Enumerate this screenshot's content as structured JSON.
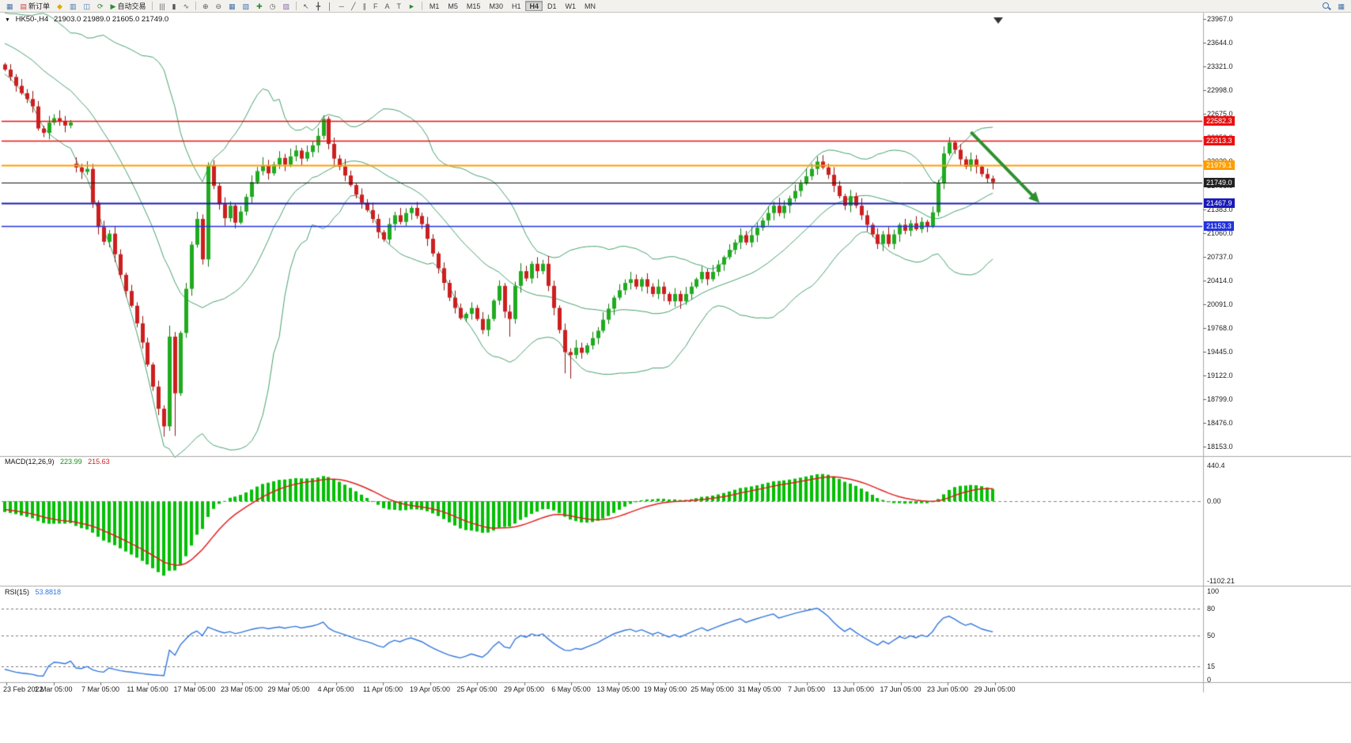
{
  "window": {
    "background": "#ffffff",
    "toolbar_background": "#f2f1ee"
  },
  "toolbar": {
    "items": [
      {
        "type": "icon",
        "name": "new-chart-icon",
        "glyph": "▦",
        "color": "#4472a8"
      },
      {
        "type": "button",
        "name": "new-order-button",
        "glyph": "▤",
        "color": "#d04040",
        "label": "新订单"
      },
      {
        "type": "icon",
        "name": "favorites-icon",
        "glyph": "◆",
        "color": "#e0a800"
      },
      {
        "type": "icon",
        "name": "market-watch-icon",
        "glyph": "▥",
        "color": "#4472a8"
      },
      {
        "type": "icon",
        "name": "data-window-icon",
        "glyph": "◫",
        "color": "#4472a8"
      },
      {
        "type": "icon",
        "name": "refresh-icon",
        "glyph": "⟳",
        "color": "#2e8b2e"
      },
      {
        "type": "button",
        "name": "auto-trading-button",
        "glyph": "▶",
        "color": "#2e8b2e",
        "label": "自动交易"
      },
      {
        "type": "sep"
      },
      {
        "type": "icon",
        "name": "bar-chart-icon",
        "glyph": "|||",
        "color": "#555555"
      },
      {
        "type": "icon",
        "name": "candle-chart-icon",
        "glyph": "▮",
        "color": "#555555"
      },
      {
        "type": "icon",
        "name": "line-chart-icon",
        "glyph": "∿",
        "color": "#555555"
      },
      {
        "type": "sep"
      },
      {
        "type": "icon",
        "name": "zoom-in-icon",
        "glyph": "⊕",
        "color": "#555555"
      },
      {
        "type": "icon",
        "name": "zoom-out-icon",
        "glyph": "⊖",
        "color": "#555555"
      },
      {
        "type": "icon",
        "name": "tile-windows-icon",
        "glyph": "▦",
        "color": "#4472a8"
      },
      {
        "type": "icon",
        "name": "cascade-windows-icon",
        "glyph": "▧",
        "color": "#4472a8"
      },
      {
        "type": "icon",
        "name": "add-indicator-icon",
        "glyph": "✚",
        "color": "#2e8b2e"
      },
      {
        "type": "icon",
        "name": "period-icon",
        "glyph": "◷",
        "color": "#555555"
      },
      {
        "type": "icon",
        "name": "template-icon",
        "glyph": "▨",
        "color": "#8a6ca8"
      },
      {
        "type": "sep"
      },
      {
        "type": "icon",
        "name": "cursor-icon",
        "glyph": "↖",
        "color": "#555555"
      },
      {
        "type": "icon",
        "name": "crosshair-icon",
        "glyph": "╋",
        "color": "#555555"
      },
      {
        "type": "icon",
        "name": "vline-icon",
        "glyph": "│",
        "color": "#555555"
      },
      {
        "type": "icon",
        "name": "hline-icon",
        "glyph": "─",
        "color": "#555555"
      },
      {
        "type": "icon",
        "name": "trendline-icon",
        "glyph": "╱",
        "color": "#555555"
      },
      {
        "type": "icon",
        "name": "channel-icon",
        "glyph": "∥",
        "color": "#555555"
      },
      {
        "type": "icon",
        "name": "fibonacci-icon",
        "glyph": "F",
        "color": "#555555"
      },
      {
        "type": "icon",
        "name": "text-icon",
        "glyph": "A",
        "color": "#555555"
      },
      {
        "type": "icon",
        "name": "label-icon",
        "glyph": "T",
        "color": "#555555"
      },
      {
        "type": "icon",
        "name": "arrows-icon",
        "glyph": "►",
        "color": "#2e8b2e"
      },
      {
        "type": "sep"
      },
      {
        "type": "tf",
        "name": "timeframe-m1",
        "label": "M1",
        "active": false
      },
      {
        "type": "tf",
        "name": "timeframe-m5",
        "label": "M5",
        "active": false
      },
      {
        "type": "tf",
        "name": "timeframe-m15",
        "label": "M15",
        "active": false
      },
      {
        "type": "tf",
        "name": "timeframe-m30",
        "label": "M30",
        "active": false
      },
      {
        "type": "tf",
        "name": "timeframe-h1",
        "label": "H1",
        "active": false
      },
      {
        "type": "tf",
        "name": "timeframe-h4",
        "label": "H4",
        "active": true
      },
      {
        "type": "tf",
        "name": "timeframe-d1",
        "label": "D1",
        "active": false
      },
      {
        "type": "tf",
        "name": "timeframe-w1",
        "label": "W1",
        "active": false
      },
      {
        "type": "tf",
        "name": "timeframe-mn",
        "label": "MN",
        "active": false
      }
    ],
    "right_items": [
      {
        "type": "mag",
        "name": "search-icon"
      },
      {
        "type": "icon",
        "name": "chart-window-icon",
        "glyph": "▦",
        "color": "#4472a8"
      }
    ]
  },
  "chart_data": {
    "type": "candlestick",
    "main": {
      "symbol_marker": "▼",
      "symbol": "HK50-,H4",
      "ohlc": "21903.0 21989.0 21605.0 21749.0",
      "price_axis": {
        "min": 18080,
        "max": 23990,
        "ticks": [
          "23967.0",
          "23644.0",
          "23321.0",
          "22998.0",
          "22675.0",
          "22352.0",
          "22029.0",
          "21706.0",
          "21383.0",
          "21060.0",
          "20737.0",
          "20414.0",
          "20091.0",
          "19768.0",
          "19445.0",
          "19122.0",
          "18799.0",
          "18476.0",
          "18153.0"
        ]
      },
      "hlines": [
        {
          "price": 22582.3,
          "label": "22582.3",
          "color": "#e81010",
          "width": 1.4
        },
        {
          "price": 22313.3,
          "label": "22313.3",
          "color": "#e81010",
          "width": 1.4
        },
        {
          "price": 21979.1,
          "label": "21979.1",
          "color": "#ff9d00",
          "width": 2
        },
        {
          "price": 21749.0,
          "label": "21749.0",
          "color": "#111111",
          "width": 1,
          "badge": "#222222"
        },
        {
          "price": 21467.9,
          "label": "21467.9",
          "color": "#1a1ab8",
          "width": 2
        },
        {
          "price": 21153.3,
          "label": "21153.3",
          "color": "#2233dd",
          "width": 1.4
        }
      ],
      "bollinger": {
        "period": 20,
        "deviation": 2,
        "color": "#46a06e"
      },
      "candles": {
        "first_open": 23350,
        "up_color": "#1fab1f",
        "up_dark": "#0c7a0c",
        "down_color": "#cc1f1f",
        "down_dark": "#8f1212",
        "pre_closes": [
          23950,
          23900,
          23870,
          23930,
          23860,
          23820,
          23850,
          23780,
          23740,
          23700,
          23720,
          23650,
          23600,
          23560,
          23520,
          23470,
          23430,
          23380,
          23340,
          23310
        ],
        "closes": [
          23280,
          23180,
          23060,
          22960,
          22880,
          22780,
          22480,
          22420,
          22560,
          22620,
          22580,
          22520,
          22560,
          21950,
          21890,
          21930,
          21470,
          21140,
          20940,
          21050,
          20770,
          20490,
          20270,
          20070,
          19830,
          19570,
          19270,
          18970,
          18670,
          18430,
          19650,
          18880,
          19700,
          20300,
          20900,
          21250,
          20700,
          21970,
          21700,
          21450,
          21260,
          21430,
          21200,
          21350,
          21550,
          21750,
          21900,
          21980,
          21870,
          21990,
          22080,
          21990,
          22100,
          22180,
          22070,
          22160,
          22250,
          22380,
          22610,
          22270,
          22070,
          21960,
          21840,
          21710,
          21580,
          21470,
          21370,
          21250,
          21070,
          20970,
          21180,
          21300,
          21210,
          21330,
          21400,
          21290,
          21180,
          20980,
          20780,
          20580,
          20380,
          20180,
          20040,
          19900,
          19960,
          20040,
          19890,
          19740,
          19890,
          20140,
          20340,
          19990,
          19890,
          20340,
          20540,
          20440,
          20640,
          20540,
          20640,
          20340,
          20040,
          19740,
          19440,
          19400,
          19500,
          19430,
          19530,
          19630,
          19730,
          19880,
          20030,
          20180,
          20280,
          20380,
          20430,
          20330,
          20430,
          20330,
          20230,
          20330,
          20230,
          20130,
          20230,
          20130,
          20230,
          20330,
          20430,
          20530,
          20430,
          20530,
          20630,
          20730,
          20830,
          20930,
          21030,
          20930,
          21030,
          21130,
          21230,
          21330,
          21430,
          21330,
          21430,
          21530,
          21630,
          21730,
          21830,
          21930,
          22030,
          21950,
          21850,
          21700,
          21560,
          21430,
          21560,
          21430,
          21300,
          21170,
          21040,
          20910,
          21040,
          20910,
          21040,
          21170,
          21090,
          21190,
          21110,
          21210,
          21150,
          21340,
          21740,
          22140,
          22290,
          22190,
          22060,
          21960,
          22060,
          21960,
          21860,
          21800,
          21749
        ],
        "open_overrides": {
          "13": 22000
        },
        "high_overrides": {
          "30": 19800,
          "37": 22020,
          "58": 22660,
          "148": 22100,
          "172": 22360
        },
        "low_overrides": {
          "29": 18290,
          "31": 18300,
          "92": 19650,
          "102": 19150,
          "103": 19080
        }
      },
      "arrow": {
        "from_bar": 176,
        "from_price": 22430,
        "to_bar": 188.5,
        "to_price": 21470,
        "color": "#2f8f2f"
      }
    },
    "macd": {
      "name": "MACD(12,26,9)",
      "value_main": "223.99",
      "value_signal": "215.63",
      "axis_max": "440.4",
      "axis_zero": "0.00",
      "axis_min": "-1102.21",
      "params": {
        "fast": 12,
        "slow": 26,
        "signal": 9
      },
      "colors": {
        "histogram": "#00bf00",
        "signal": "#e02020"
      }
    },
    "rsi": {
      "name": "RSI(15)",
      "value": "53.8818",
      "period": 15,
      "levels": [
        80,
        50,
        15
      ],
      "axis_labels": [
        "100",
        "80",
        "50",
        "15",
        "0"
      ],
      "color": "#3377dd"
    },
    "time_axis": {
      "labels": [
        "23 Feb 2022",
        "1 Mar 05:00",
        "7 Mar 05:00",
        "11 Mar 05:00",
        "17 Mar 05:00",
        "23 Mar 05:00",
        "29 Mar 05:00",
        "4 Apr 05:00",
        "11 Apr 05:00",
        "19 Apr 05:00",
        "25 Apr 05:00",
        "29 Apr 05:00",
        "6 May 05:00",
        "13 May 05:00",
        "19 May 05:00",
        "25 May 05:00",
        "31 May 05:00",
        "7 Jun 05:00",
        "13 Jun 05:00",
        "17 Jun 05:00",
        "23 Jun 05:00",
        "29 Jun 05:00"
      ]
    }
  }
}
